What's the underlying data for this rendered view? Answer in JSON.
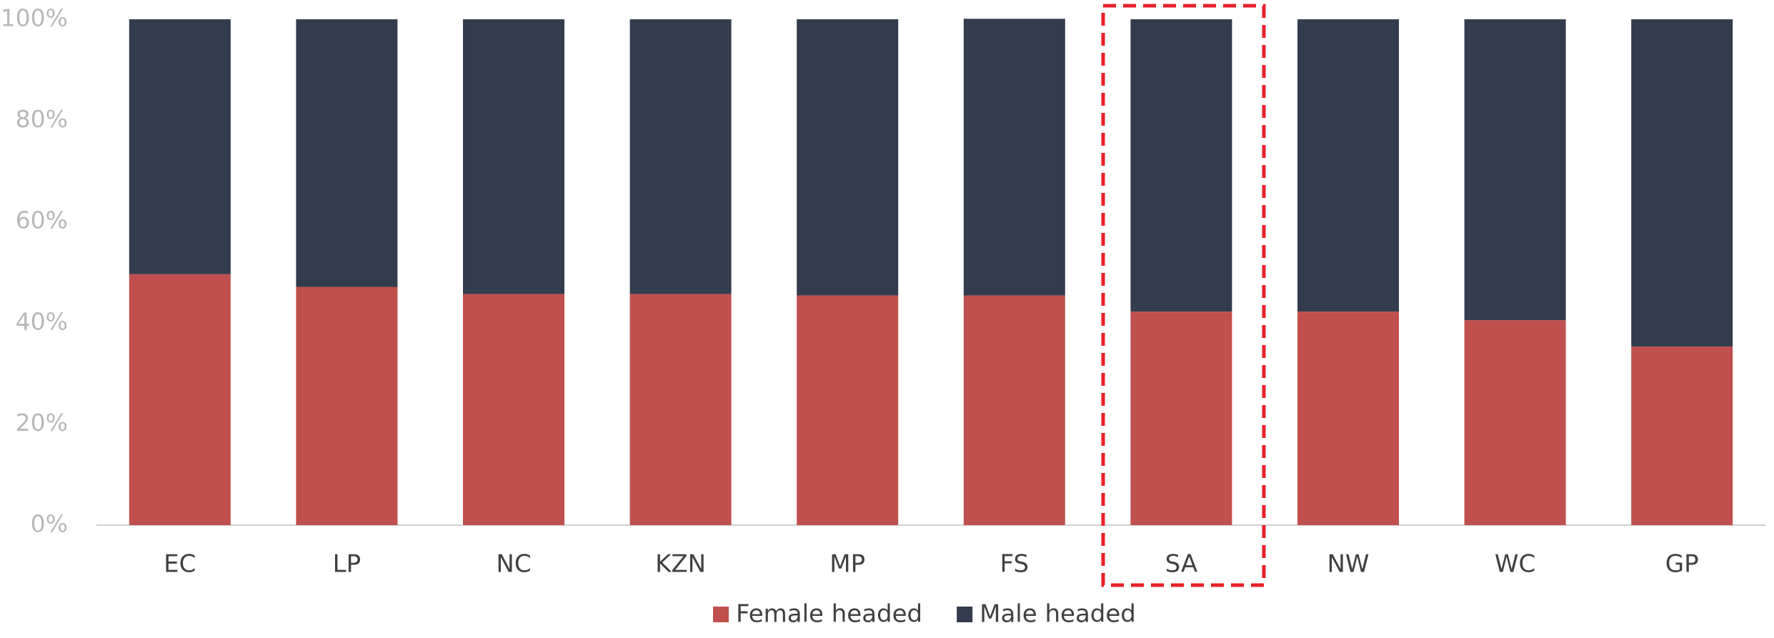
{
  "chart_data": {
    "type": "stacked_bar",
    "categories": [
      "EC",
      "LP",
      "NC",
      "KZN",
      "MP",
      "FS",
      "SA",
      "NW",
      "WC",
      "GP"
    ],
    "series": [
      {
        "name": "Female headed",
        "color": "#c0504d",
        "values": [
          49.6,
          47.1,
          45.7,
          45.7,
          45.4,
          45.4,
          42.2,
          42.2,
          40.5,
          35.3
        ]
      },
      {
        "name": "Male headed",
        "color": "#333c4e",
        "values": [
          50.4,
          52.9,
          54.3,
          54.3,
          54.6,
          54.7,
          57.8,
          57.8,
          59.5,
          64.7
        ]
      }
    ],
    "ylim": [
      0,
      100
    ],
    "yticks": [
      {
        "value": 0,
        "label": "0%"
      },
      {
        "value": 20,
        "label": "20%"
      },
      {
        "value": 40,
        "label": "40%"
      },
      {
        "value": 60,
        "label": "60%"
      },
      {
        "value": 80,
        "label": "80%"
      },
      {
        "value": 100,
        "label": "100%"
      }
    ],
    "grid": false,
    "legend": "bottom"
  }
}
